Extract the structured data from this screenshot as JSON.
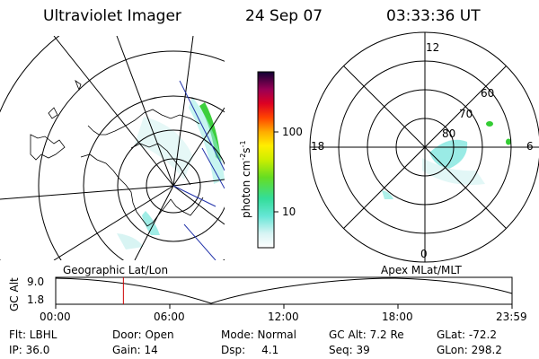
{
  "header": {
    "instrument": "Ultraviolet Imager",
    "date": "24 Sep 07",
    "time": "03:33:36 UT"
  },
  "colorbar": {
    "unit_label": "photon cm",
    "unit_exp1": "-2",
    "unit_mid": "s",
    "unit_exp2": "-1",
    "ticks": [
      "100",
      "10"
    ]
  },
  "left_panel": {
    "label": "Geographic Lat/Lon"
  },
  "right_panel": {
    "label": "Apex MLat/MLT",
    "mlt_labels": [
      "12",
      "18",
      "6",
      "0"
    ],
    "mlat_labels": [
      "60",
      "70",
      "80"
    ]
  },
  "altitude_plot": {
    "axis_label": "GC Alt",
    "y_ticks": [
      "9.0",
      "1.8"
    ],
    "x_ticks": [
      "00:00",
      "06:00",
      "12:00",
      "18:00",
      "23:59"
    ],
    "marker_time_hours": 3.56
  },
  "info": {
    "filter": "Flt: LBHL",
    "ip": "IP: 36.0",
    "door": "Door: Open",
    "gain": "Gain: 14",
    "mode": "Mode: Normal",
    "dsp": "Dsp:",
    "dsp_value": "4.1",
    "gc_alt": "GC Alt: 7.2 Re",
    "seq": "Seq: 39",
    "glat": "GLat: -72.2",
    "glon": "GLon: 298.2"
  },
  "colors": {
    "aurora_green": "#33cc33",
    "aurora_cyan": "#88e8e0",
    "marker_red": "#cc0000",
    "track_blue": "#2233aa"
  }
}
